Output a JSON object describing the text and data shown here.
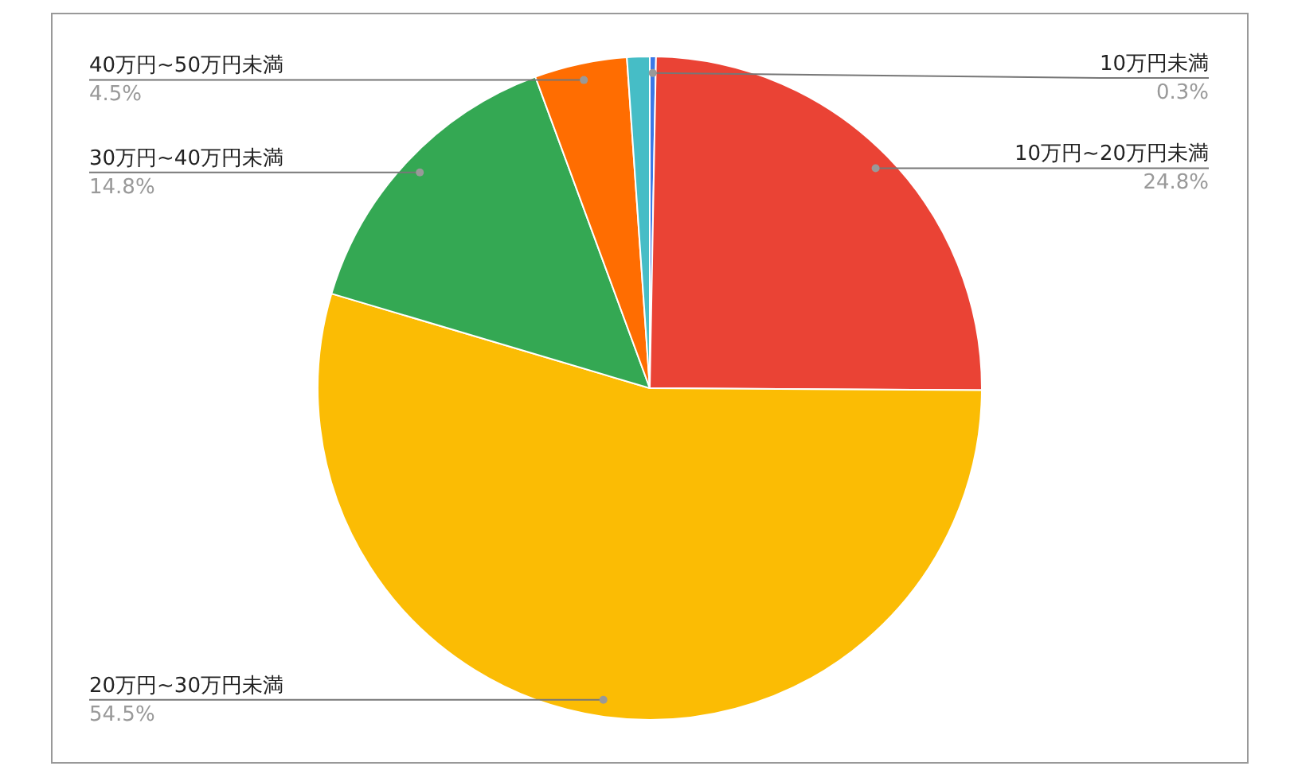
{
  "chart_data": {
    "type": "pie",
    "categories": [
      "10万円未満",
      "10万円~20万円未満",
      "20万円~30万円未満",
      "30万円~40万円未満",
      "40万円~50万円未満",
      null
    ],
    "values": [
      0.3,
      24.8,
      54.5,
      14.8,
      4.5,
      1.1
    ],
    "colors": [
      "#3b78e7",
      "#ea4335",
      "#fbbc04",
      "#34a853",
      "#ff6d01",
      "#46bdc6"
    ],
    "value_labels": [
      "0.3%",
      "24.8%",
      "54.5%",
      "14.8%",
      "4.5%",
      null
    ]
  }
}
